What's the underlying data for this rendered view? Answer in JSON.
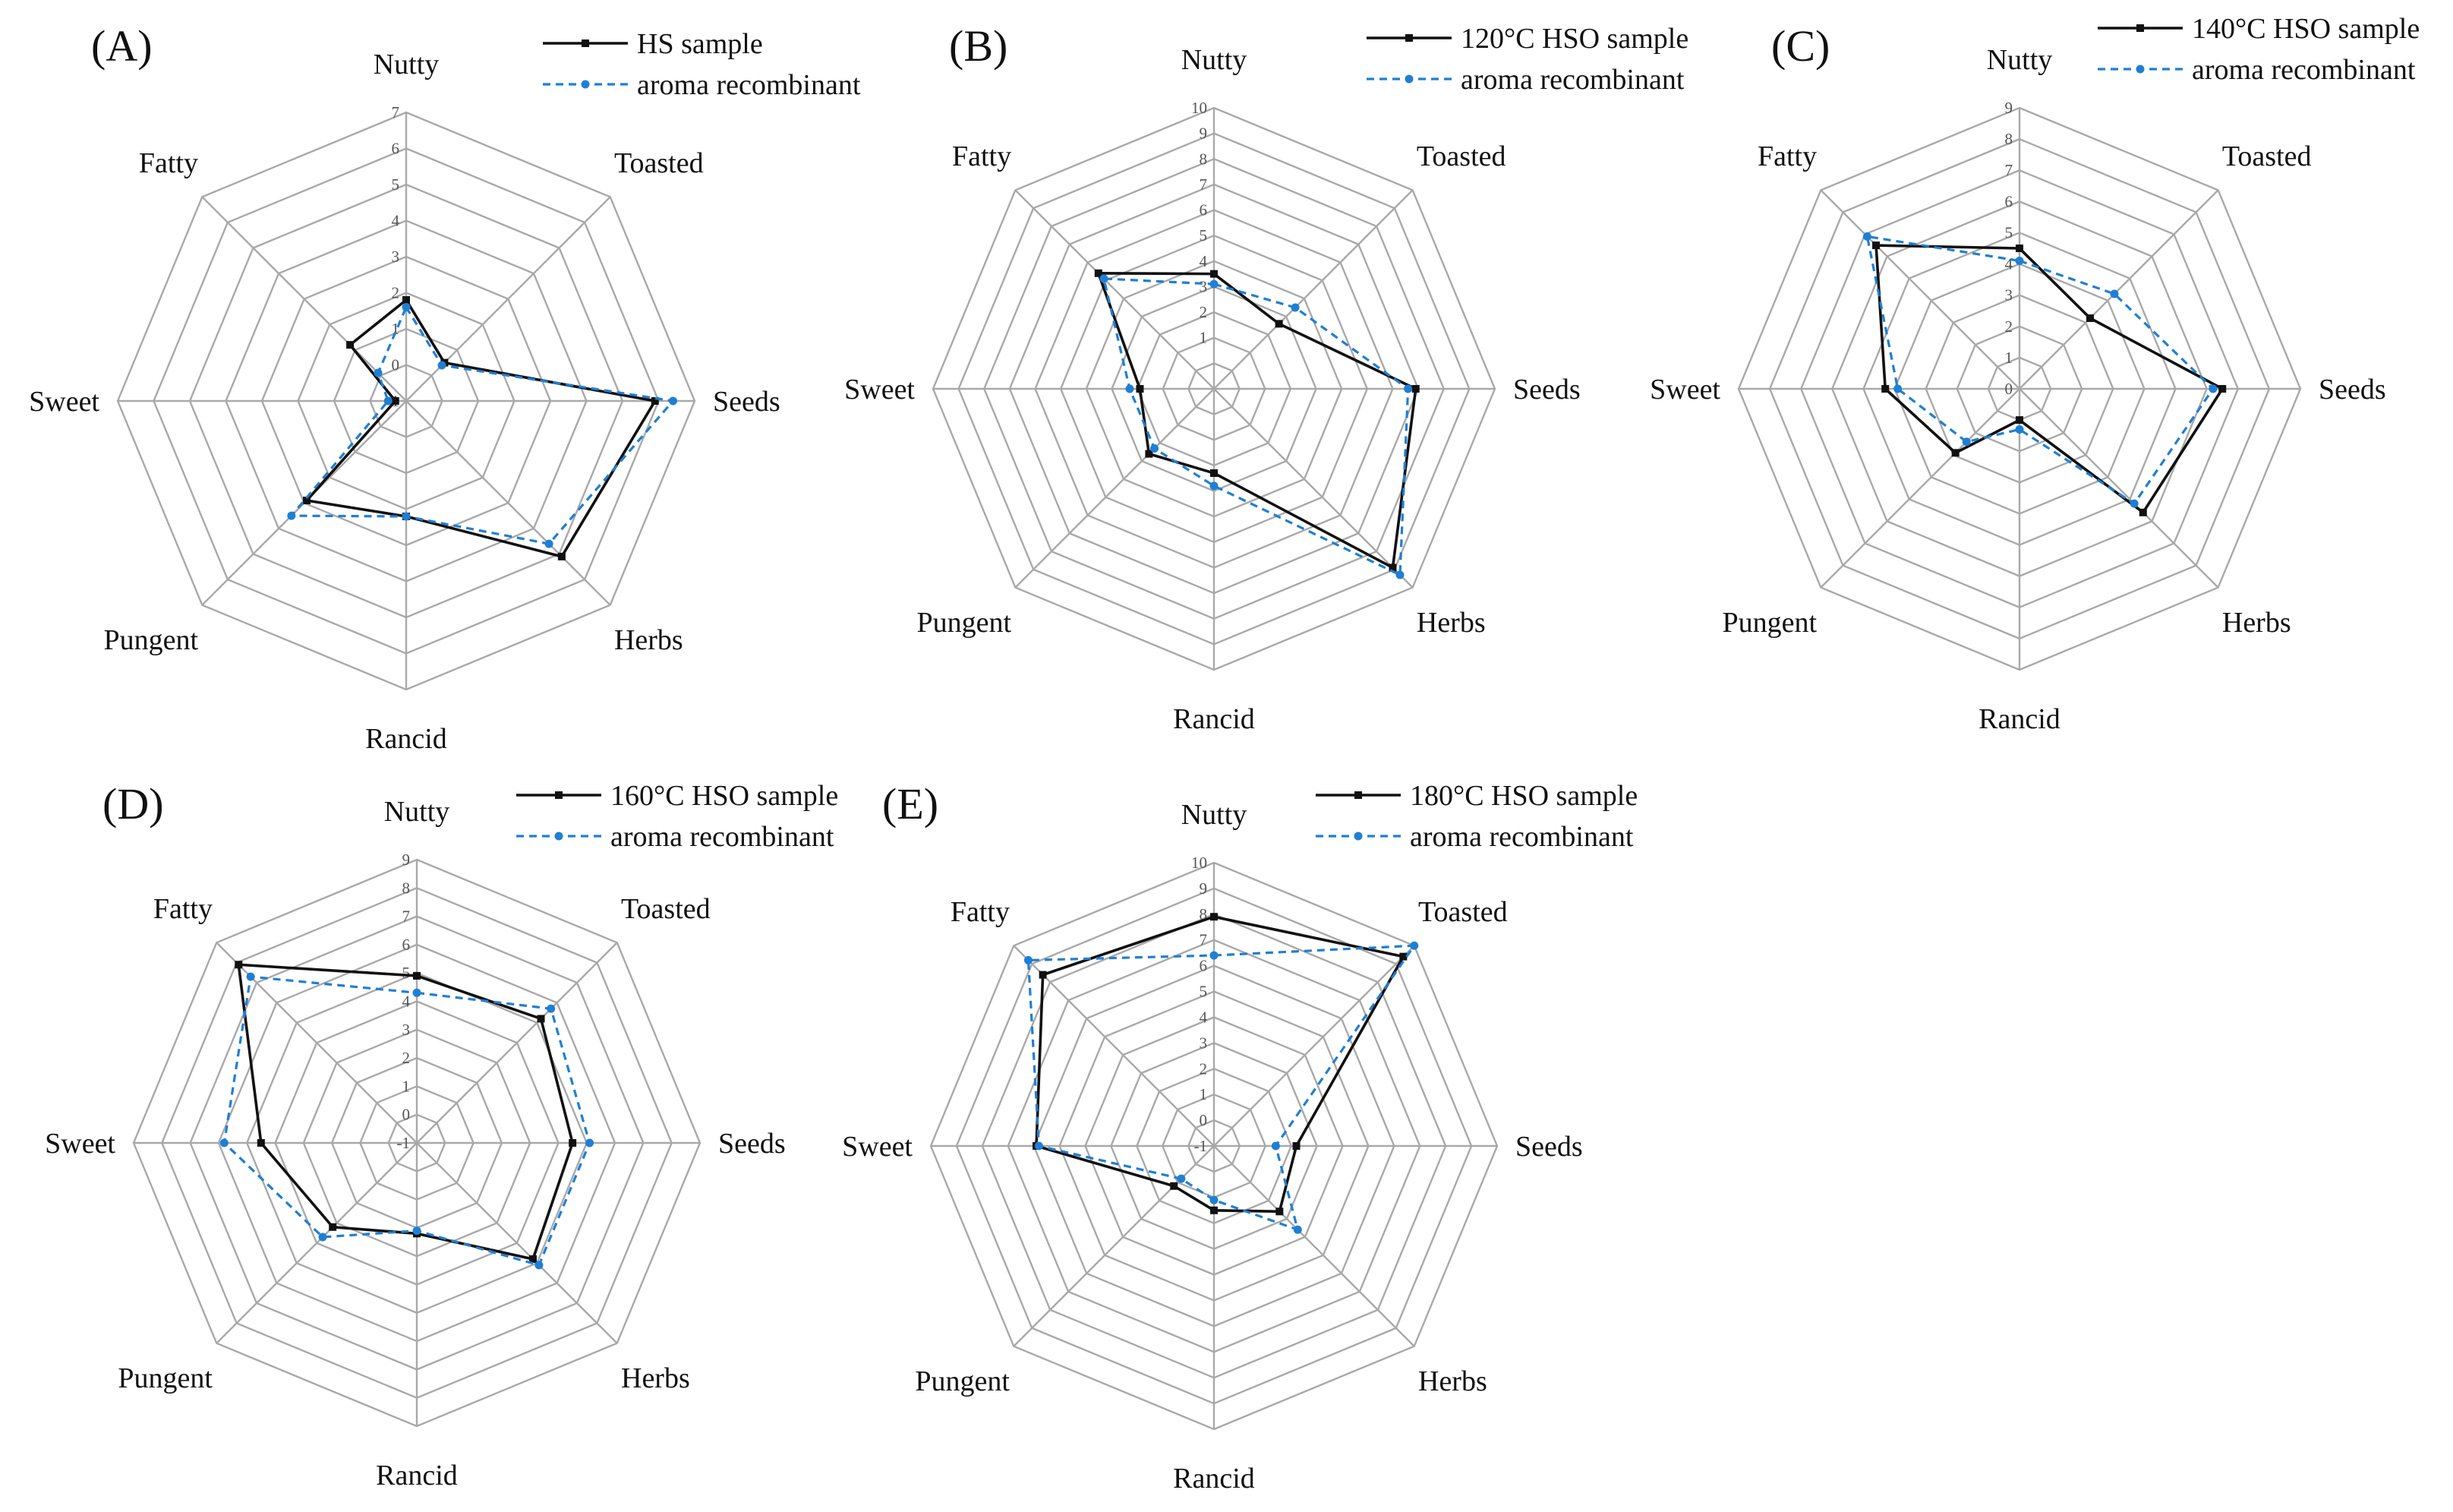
{
  "colors": {
    "sample": "#111111",
    "recombinant": "#1f7fd4",
    "grid": "#a9a9a9"
  },
  "chart_data": [
    {
      "type": "radar",
      "panel": "(A)",
      "axes": [
        "Nutty",
        "Toasted",
        "Seeds",
        "Herbs",
        "Rancid",
        "Pungent",
        "Sweet",
        "Fatty"
      ],
      "range": [
        -1,
        7
      ],
      "ticks": [
        "-1",
        "0",
        "1",
        "2",
        "3",
        "4",
        "5",
        "6",
        "7"
      ],
      "series": [
        {
          "name": "HS sample",
          "values": [
            1.8,
            0.5,
            5.9,
            5.1,
            2.2,
            2.9,
            -0.7,
            1.2
          ]
        },
        {
          "name": "aroma recombinant",
          "values": [
            1.6,
            0.4,
            6.4,
            4.6,
            2.2,
            3.5,
            -0.5,
            0.1
          ]
        }
      ]
    },
    {
      "type": "radar",
      "panel": "(B)",
      "axes": [
        "Nutty",
        "Toasted",
        "Seeds",
        "Herbs",
        "Rancid",
        "Pungent",
        "Sweet",
        "Fatty"
      ],
      "range": [
        -1,
        10
      ],
      "ticks": [
        "1",
        "2",
        "3",
        "4",
        "5",
        "6",
        "7",
        "8",
        "9",
        "10"
      ],
      "series": [
        {
          "name": "120°C HSO sample",
          "values": [
            3.5,
            2.6,
            6.9,
            8.9,
            2.3,
            2.6,
            1.9,
            5.4
          ]
        },
        {
          "name": "aroma recombinant",
          "values": [
            3.1,
            3.5,
            6.6,
            9.3,
            2.8,
            2.3,
            2.3,
            5.1
          ]
        }
      ]
    },
    {
      "type": "radar",
      "panel": "(C)",
      "axes": [
        "Nutty",
        "Toasted",
        "Seeds",
        "Herbs",
        "Rancid",
        "Pungent",
        "Sweet",
        "Fatty"
      ],
      "range": [
        0,
        9
      ],
      "ticks": [
        "0",
        "1",
        "2",
        "3",
        "4",
        "5",
        "6",
        "7",
        "8",
        "9"
      ],
      "series": [
        {
          "name": "140°C HSO sample",
          "values": [
            4.5,
            3.2,
            6.5,
            5.6,
            1.0,
            2.9,
            4.3,
            6.5
          ]
        },
        {
          "name": "aroma recombinant",
          "values": [
            4.1,
            4.3,
            6.2,
            5.2,
            1.3,
            2.4,
            3.9,
            6.9
          ]
        }
      ]
    },
    {
      "type": "radar",
      "panel": "(D)",
      "axes": [
        "Nutty",
        "Toasted",
        "Seeds",
        "Herbs",
        "Rancid",
        "Pungent",
        "Sweet",
        "Fatty"
      ],
      "range": [
        -1,
        9
      ],
      "ticks": [
        "-1",
        "0",
        "1",
        "2",
        "3",
        "4",
        "5",
        "6",
        "7",
        "8",
        "9"
      ],
      "series": [
        {
          "name": "160°C HSO sample",
          "values": [
            4.9,
            5.2,
            4.5,
            4.8,
            2.2,
            3.2,
            4.5,
            7.9
          ]
        },
        {
          "name": "aroma recombinant",
          "values": [
            4.3,
            5.7,
            5.1,
            5.1,
            2.1,
            3.7,
            5.8,
            7.3
          ]
        }
      ]
    },
    {
      "type": "radar",
      "panel": "(E)",
      "axes": [
        "Nutty",
        "Toasted",
        "Seeds",
        "Herbs",
        "Rancid",
        "Pungent",
        "Sweet",
        "Fatty"
      ],
      "range": [
        -1,
        10
      ],
      "ticks": [
        "-1",
        "0",
        "1",
        "2",
        "3",
        "4",
        "5",
        "6",
        "7",
        "8",
        "9",
        "10"
      ],
      "series": [
        {
          "name": "180°C HSO sample",
          "values": [
            7.9,
            9.4,
            2.2,
            2.6,
            1.5,
            1.2,
            5.9,
            8.4
          ]
        },
        {
          "name": "aroma recombinant",
          "values": [
            6.4,
            10.0,
            1.4,
            3.6,
            1.1,
            0.8,
            5.8,
            9.2
          ]
        }
      ]
    }
  ]
}
